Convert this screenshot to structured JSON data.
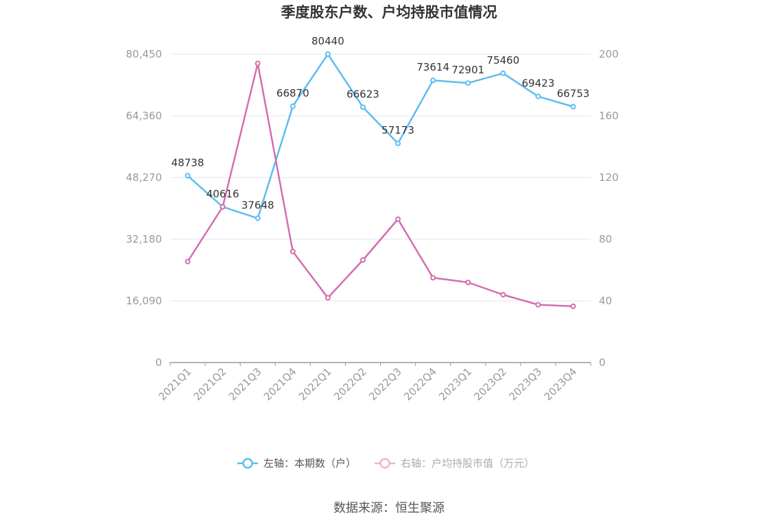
{
  "chart_data": {
    "type": "line",
    "title": "季度股东户数、户均持股市值情况",
    "categories": [
      "2021Q1",
      "2021Q2",
      "2021Q3",
      "2021Q4",
      "2022Q1",
      "2022Q2",
      "2022Q3",
      "2022Q4",
      "2023Q1",
      "2023Q2",
      "2023Q3",
      "2023Q4"
    ],
    "left_axis": {
      "ticks": [
        "0",
        "16,090",
        "32,180",
        "48,270",
        "64,360",
        "80,450"
      ],
      "ylim": [
        0,
        80450
      ]
    },
    "right_axis": {
      "ticks": [
        "0",
        "40",
        "80",
        "120",
        "160",
        "200"
      ],
      "ylim": [
        0,
        200
      ]
    },
    "grid": true,
    "legend_position": "bottom",
    "series": [
      {
        "name": "左轴：本期数（户）",
        "axis": "left",
        "color": "#5bbdf0",
        "values": [
          48738,
          40616,
          37648,
          66870,
          80440,
          66623,
          57173,
          73614,
          72901,
          75460,
          69423,
          66753
        ],
        "labels": [
          "48738",
          "40616",
          "37648",
          "66870",
          "80440",
          "66623",
          "57173",
          "73614",
          "72901",
          "75460",
          "69423",
          "66753"
        ]
      },
      {
        "name": "右轴：户均持股市值（万元）",
        "axis": "right",
        "color": "#d46cb0",
        "values": [
          65.5,
          101,
          194,
          72,
          42,
          66.5,
          93,
          55,
          52,
          44,
          37.5,
          36.5
        ]
      }
    ],
    "source": "数据来源：恒生聚源"
  }
}
